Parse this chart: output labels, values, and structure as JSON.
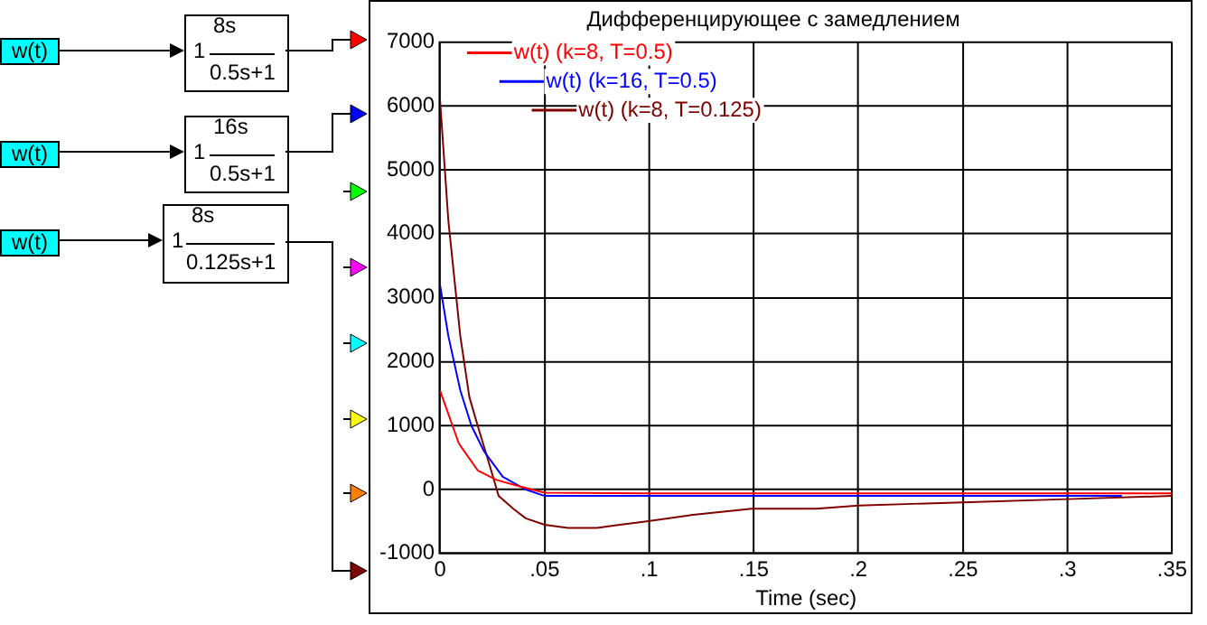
{
  "chart_data": {
    "type": "line",
    "title": "Дифференцирующее с замедлением",
    "xlabel": "Time (sec)",
    "xlim": [
      0,
      0.35
    ],
    "xticks": [
      0,
      {
        "value": 0.05,
        "label": ".05"
      },
      {
        "value": 0.1,
        "label": ".1"
      },
      {
        "value": 0.15,
        "label": ".15"
      },
      {
        "value": 0.2,
        "label": ".2"
      },
      {
        "value": 0.25,
        "label": ".25"
      },
      {
        "value": 0.3,
        "label": ".3"
      },
      {
        "value": 0.35,
        "label": ".35"
      }
    ],
    "ylim": [
      -1000,
      7000
    ],
    "yticks": [
      -1000,
      0,
      1000,
      2000,
      3000,
      4000,
      5000,
      6000,
      7000
    ],
    "grid": true,
    "legend": "top left",
    "marker": "none",
    "line_style": "solid",
    "series": [
      {
        "name": "w(t) (k=8, T=0.5)",
        "color": "#ff0000",
        "x": [
          0,
          0.009,
          0.018,
          0.027,
          0.038,
          0.05,
          0.1,
          0.2,
          0.3,
          0.35
        ],
        "values": [
          1550,
          720,
          300,
          150,
          50,
          -50,
          -60,
          -60,
          -60,
          -60
        ]
      },
      {
        "name": "w(t) (k=16, T=0.5)",
        "color": "#0000ff",
        "x": [
          0,
          0.004,
          0.0097,
          0.015,
          0.021,
          0.03,
          0.041,
          0.05,
          0.1,
          0.2,
          0.25,
          0.326
        ],
        "values": [
          3200,
          2400,
          1550,
          1000,
          600,
          200,
          0,
          -100,
          -100,
          -100,
          -100,
          -100
        ]
      },
      {
        "name": "w(t) (k=8, T=0.125)",
        "color": "#800000",
        "x": [
          0,
          0.004,
          0.0097,
          0.014,
          0.018,
          0.024,
          0.028,
          0.035,
          0.041,
          0.05,
          0.061,
          0.075,
          0.086,
          0.098,
          0.12,
          0.149,
          0.18,
          0.2,
          0.25,
          0.3,
          0.35
        ],
        "values": [
          6100,
          4200,
          2400,
          1450,
          1000,
          350,
          -100,
          -300,
          -450,
          -550,
          -600,
          -600,
          -550,
          -500,
          -400,
          -300,
          -300,
          -250,
          -200,
          -150,
          -100
        ]
      }
    ],
    "annotations": [
      "w(t)",
      "w(t)",
      "w(t)",
      "1",
      "8s",
      "0.5s+1",
      "1",
      "16s",
      "0.5s+1",
      "1",
      "8s",
      "0.125s+1"
    ]
  }
}
